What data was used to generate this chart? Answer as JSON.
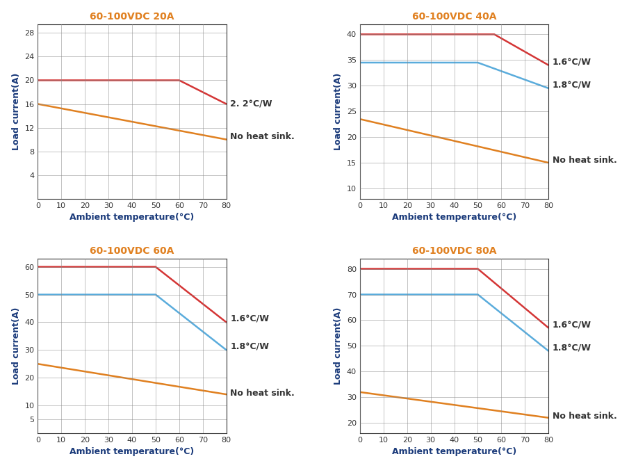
{
  "charts": [
    {
      "title": "60-100VDC 20A",
      "yticks": [
        4,
        8,
        12,
        16,
        20,
        24,
        28
      ],
      "ylim": [
        0,
        29.5
      ],
      "xlim": [
        0,
        80
      ],
      "lines": [
        {
          "x": [
            0,
            60,
            80
          ],
          "y": [
            20,
            20,
            16
          ],
          "color": "#d43535",
          "lw": 1.8
        },
        {
          "x": [
            0,
            80
          ],
          "y": [
            16,
            10
          ],
          "color": "#e08020",
          "lw": 1.8
        }
      ],
      "annots": [
        {
          "text": "2. 2°C/W",
          "ydata": 16.0,
          "color": "#333333"
        },
        {
          "text": "No heat sink.",
          "ydata": 10.5,
          "color": "#333333"
        }
      ]
    },
    {
      "title": "60-100VDC 40A",
      "yticks": [
        10,
        15,
        20,
        25,
        30,
        35,
        40
      ],
      "ylim": [
        8,
        42
      ],
      "xlim": [
        0,
        80
      ],
      "lines": [
        {
          "x": [
            0,
            57,
            80
          ],
          "y": [
            40,
            40,
            34
          ],
          "color": "#d43535",
          "lw": 1.8
        },
        {
          "x": [
            0,
            50,
            80
          ],
          "y": [
            34.5,
            34.5,
            29.5
          ],
          "color": "#5aacdc",
          "lw": 1.8
        },
        {
          "x": [
            0,
            80
          ],
          "y": [
            23.5,
            15
          ],
          "color": "#e08020",
          "lw": 1.8
        }
      ],
      "annots": [
        {
          "text": "1.6°C/W",
          "ydata": 34.5,
          "color": "#333333"
        },
        {
          "text": "1.8°C/W",
          "ydata": 30.0,
          "color": "#333333"
        },
        {
          "text": "No heat sink.",
          "ydata": 15.5,
          "color": "#333333"
        }
      ]
    },
    {
      "title": "60-100VDC 60A",
      "yticks": [
        5,
        10,
        20,
        30,
        40,
        50,
        60
      ],
      "ylim": [
        0,
        63
      ],
      "xlim": [
        0,
        80
      ],
      "lines": [
        {
          "x": [
            0,
            50,
            80
          ],
          "y": [
            60,
            60,
            40
          ],
          "color": "#d43535",
          "lw": 1.8
        },
        {
          "x": [
            0,
            50,
            80
          ],
          "y": [
            50,
            50,
            30
          ],
          "color": "#5aacdc",
          "lw": 1.8
        },
        {
          "x": [
            0,
            80
          ],
          "y": [
            25,
            14
          ],
          "color": "#e08020",
          "lw": 1.8
        }
      ],
      "annots": [
        {
          "text": "1.6°C/W",
          "ydata": 41,
          "color": "#333333"
        },
        {
          "text": "1.8°C/W",
          "ydata": 31,
          "color": "#333333"
        },
        {
          "text": "No heat sink.",
          "ydata": 14.5,
          "color": "#333333"
        }
      ]
    },
    {
      "title": "60-100VDC 80A",
      "yticks": [
        20,
        30,
        40,
        50,
        60,
        70,
        80
      ],
      "ylim": [
        16,
        84
      ],
      "xlim": [
        0,
        80
      ],
      "lines": [
        {
          "x": [
            0,
            50,
            80
          ],
          "y": [
            80,
            80,
            57
          ],
          "color": "#d43535",
          "lw": 1.8
        },
        {
          "x": [
            0,
            50,
            80
          ],
          "y": [
            70,
            70,
            48
          ],
          "color": "#5aacdc",
          "lw": 1.8
        },
        {
          "x": [
            0,
            80
          ],
          "y": [
            32,
            22
          ],
          "color": "#e08020",
          "lw": 1.8
        }
      ],
      "annots": [
        {
          "text": "1.6°C/W",
          "ydata": 58,
          "color": "#333333"
        },
        {
          "text": "1.8°C/W",
          "ydata": 49,
          "color": "#333333"
        },
        {
          "text": "No heat sink.",
          "ydata": 22.5,
          "color": "#333333"
        }
      ]
    }
  ],
  "xlabel": "Ambient temperature(°C)",
  "ylabel": "Load current(A)",
  "xticks": [
    0,
    10,
    20,
    30,
    40,
    50,
    60,
    70,
    80
  ],
  "title_color": "#e08020",
  "ylabel_color": "#1a3a7a",
  "xlabel_color": "#1a3a7a",
  "tick_color": "#333333",
  "grid_color": "#888888",
  "bg_color": "#ffffff",
  "title_fontsize": 10,
  "label_fontsize": 9,
  "tick_fontsize": 8,
  "annot_fontsize": 9
}
